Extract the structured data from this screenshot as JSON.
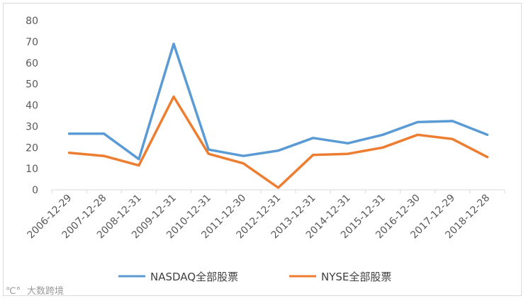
{
  "chart_data": {
    "type": "line",
    "categories": [
      "2006-12-29",
      "2007-12-28",
      "2008-12-31",
      "2009-12-31",
      "2010-12-31",
      "2011-12-30",
      "2012-12-31",
      "2013-12-31",
      "2014-12-31",
      "2015-12-31",
      "2016-12-30",
      "2017-12-29",
      "2018-12-28"
    ],
    "series": [
      {
        "name": "NASDAQ全部股票",
        "color": "#5b9bd5",
        "values": [
          26.5,
          26.5,
          14.5,
          69,
          19,
          16,
          18.5,
          24.5,
          22,
          26,
          32,
          32.5,
          26
        ]
      },
      {
        "name": "NYSE全部股票",
        "color": "#ed7d31",
        "values": [
          17.5,
          16,
          11.5,
          44,
          17,
          12.5,
          1,
          16.5,
          17,
          20,
          26,
          24,
          15.5
        ]
      }
    ],
    "ylim": [
      0,
      80
    ],
    "yticks": [
      0,
      10,
      20,
      30,
      40,
      50,
      60,
      70,
      80
    ],
    "grid": false,
    "legend_position": "bottom",
    "title": "",
    "xlabel": "",
    "ylabel": ""
  },
  "watermark": "大数跨境"
}
